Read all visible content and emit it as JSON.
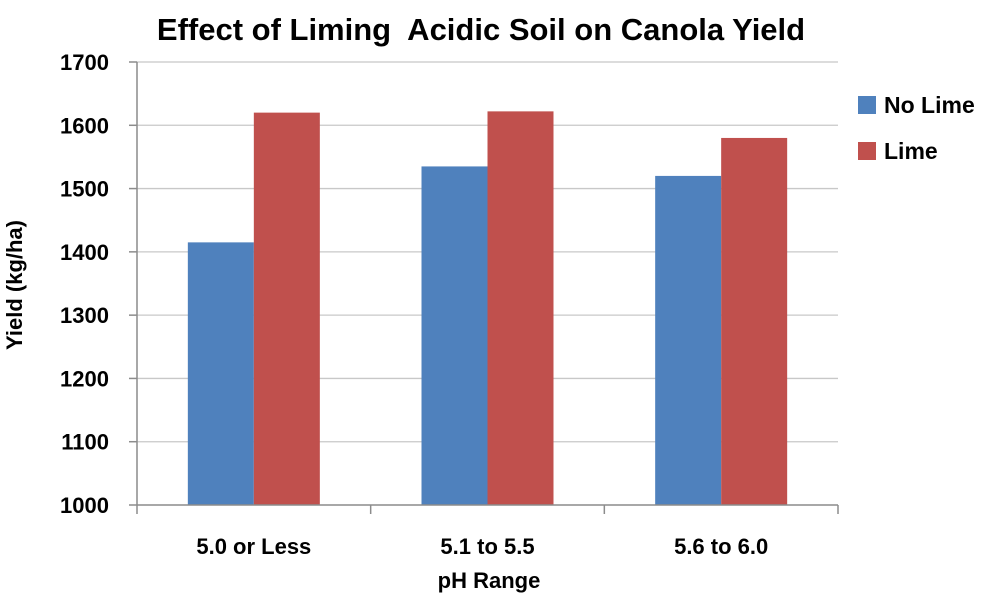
{
  "chart_data": {
    "type": "bar",
    "title": "Effect of Liming  Acidic Soil on Canola Yield",
    "xlabel": "pH Range",
    "ylabel": "Yield (kg/ha)",
    "categories": [
      "5.0 or Less",
      "5.1 to 5.5",
      "5.6 to 6.0"
    ],
    "series": [
      {
        "name": "No Lime",
        "color": "#4f81bd",
        "values": [
          1415,
          1535,
          1520
        ]
      },
      {
        "name": "Lime",
        "color": "#c0504d",
        "values": [
          1620,
          1622,
          1580
        ]
      }
    ],
    "ylim": [
      1000,
      1700
    ],
    "yticks": [
      "1000",
      "1100",
      "1200",
      "1300",
      "1400",
      "1500",
      "1600",
      "1700"
    ],
    "grid": true,
    "legend_position": "right"
  }
}
